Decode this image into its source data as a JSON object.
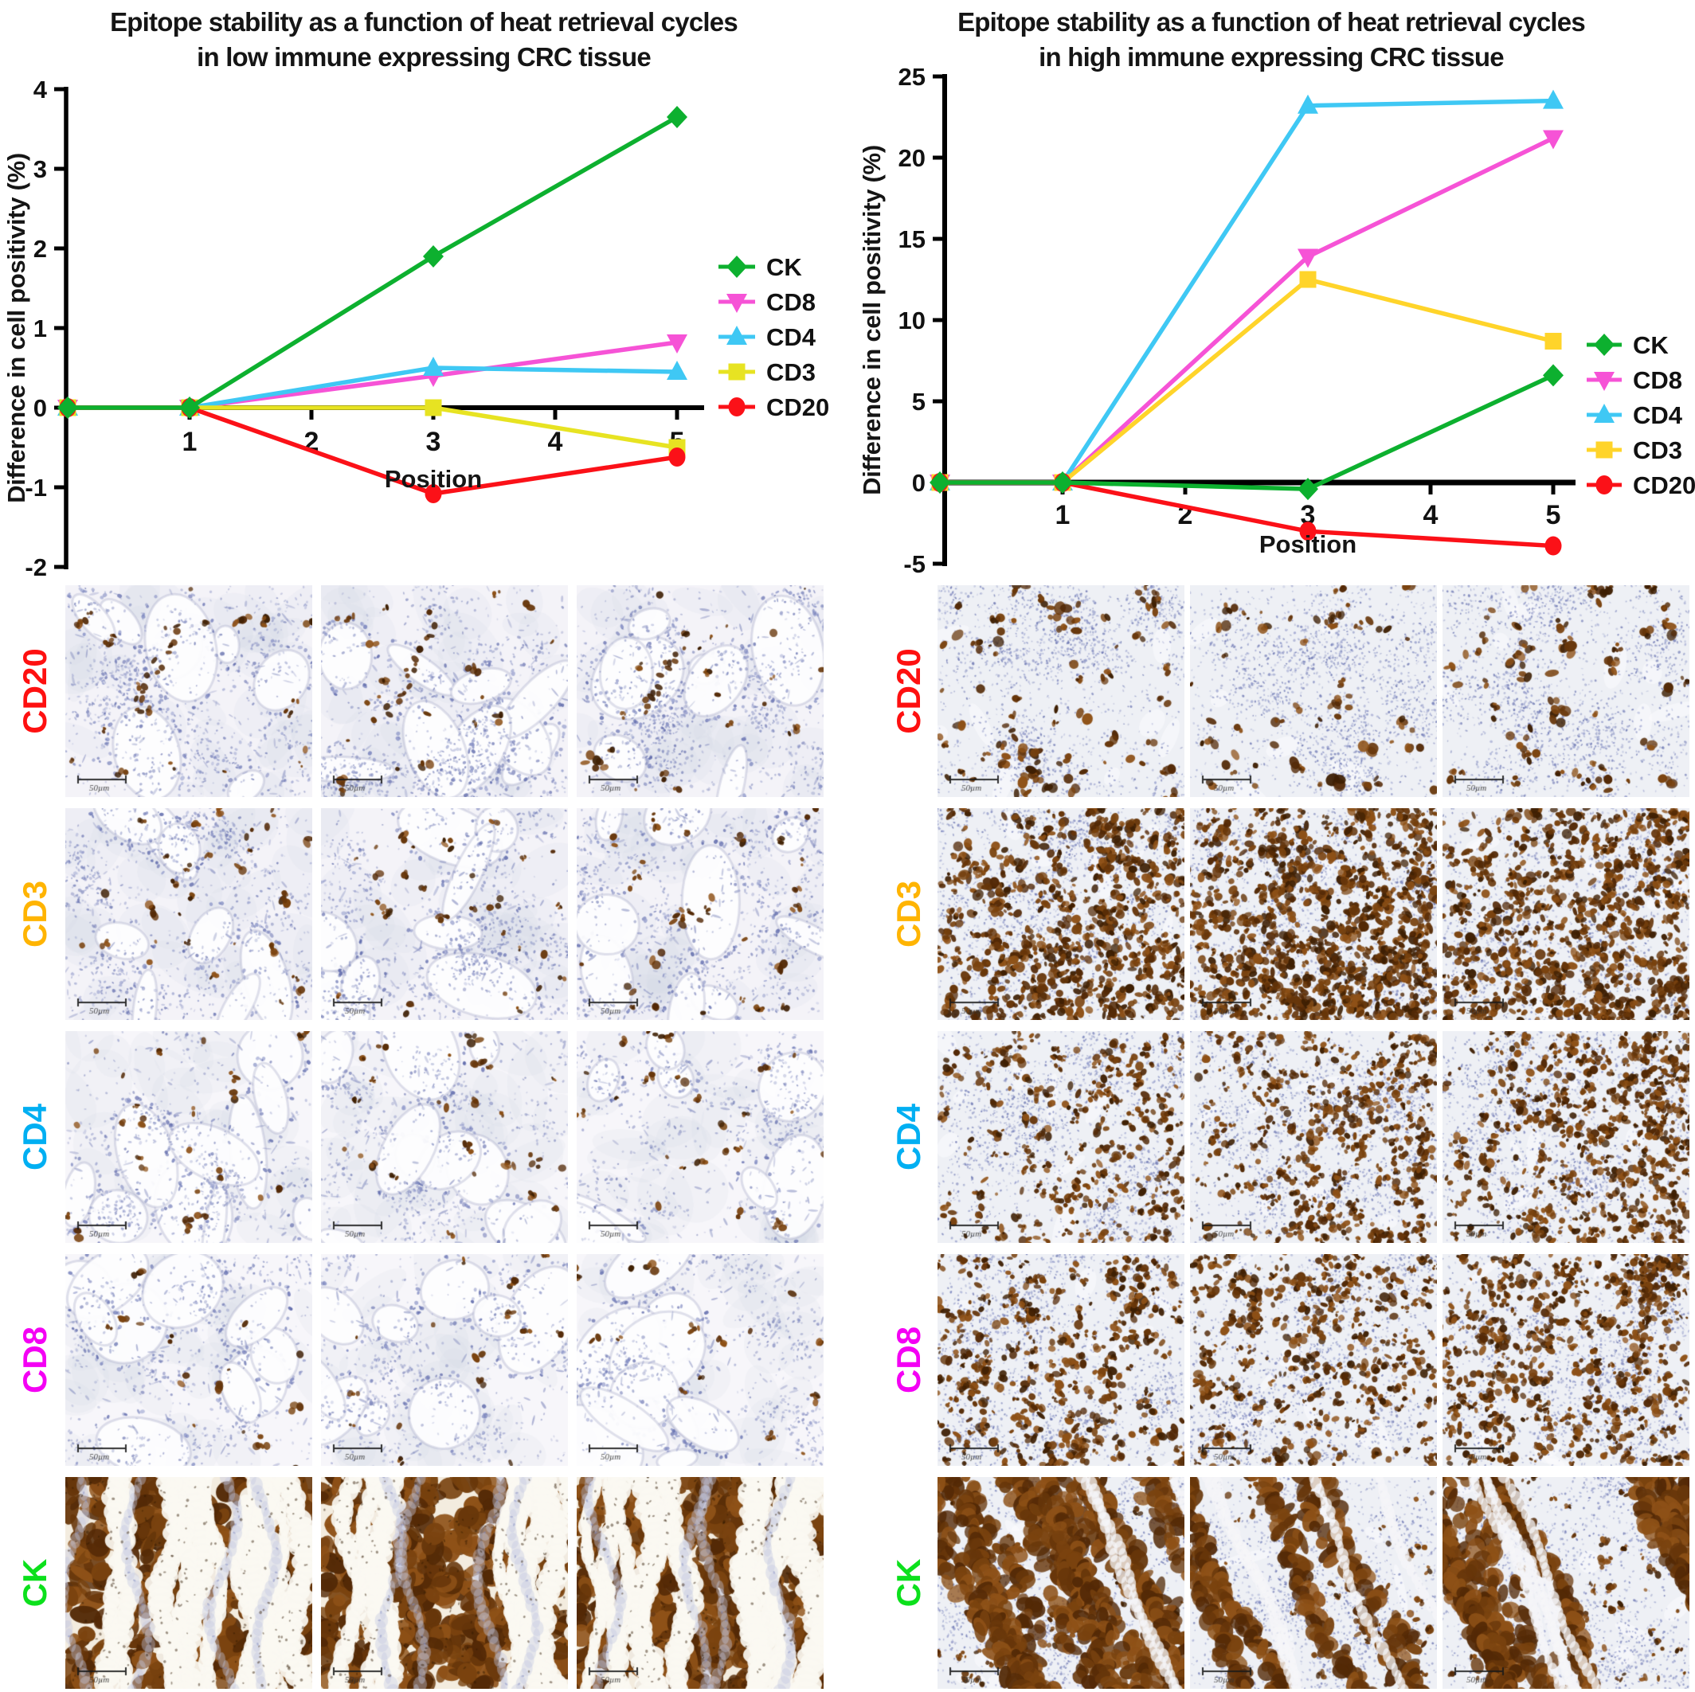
{
  "chart_data": [
    {
      "type": "line",
      "title_line1": "Epitope stability as a function of heat retrieval cycles",
      "title_line2": "in low immune expressing CRC tissue",
      "ylabel": "Difference in cell positivity (%)",
      "xlabel": "Position",
      "ylim": [
        -2,
        4
      ],
      "yticks": [
        4,
        3,
        2,
        1,
        0,
        -1,
        -2
      ],
      "xticks": [
        1,
        2,
        3,
        4,
        5
      ],
      "x": [
        0,
        1,
        3,
        5
      ],
      "legend_position": "right",
      "grid": false,
      "series": [
        {
          "name": "CK",
          "marker": "diamond",
          "color": "#0db02f",
          "values": [
            0,
            0,
            1.9,
            3.65
          ]
        },
        {
          "name": "CD8",
          "marker": "triangle-down",
          "color": "#f653d6",
          "values": [
            0,
            0,
            0.4,
            0.82
          ]
        },
        {
          "name": "CD4",
          "marker": "triangle-up",
          "color": "#3fc8f4",
          "values": [
            0,
            0,
            0.5,
            0.45
          ]
        },
        {
          "name": "CD3",
          "marker": "square",
          "color": "#e7e322",
          "values": [
            0,
            0,
            0.0,
            -0.5
          ]
        },
        {
          "name": "CD20",
          "marker": "circle",
          "color": "#fb1118",
          "values": [
            0,
            0,
            -1.08,
            -0.62
          ]
        }
      ]
    },
    {
      "type": "line",
      "title_line1": "Epitope stability as a function of heat retrieval cycles",
      "title_line2": "in high immune expressing CRC tissue",
      "ylabel": "Difference in cell positivity (%)",
      "xlabel": "Position",
      "ylim": [
        -5,
        25
      ],
      "yticks": [
        25,
        20,
        15,
        10,
        5,
        0,
        -5
      ],
      "xticks": [
        1,
        2,
        3,
        4,
        5
      ],
      "x": [
        0,
        1,
        3,
        5
      ],
      "legend_position": "right",
      "grid": false,
      "series": [
        {
          "name": "CK",
          "marker": "diamond",
          "color": "#0db02f",
          "values": [
            0,
            0,
            -0.4,
            6.6
          ]
        },
        {
          "name": "CD8",
          "marker": "triangle-down",
          "color": "#f653d6",
          "values": [
            0,
            0,
            13.9,
            21.2
          ]
        },
        {
          "name": "CD4",
          "marker": "triangle-up",
          "color": "#3fc8f4",
          "values": [
            0,
            0,
            23.2,
            23.5
          ]
        },
        {
          "name": "CD3",
          "marker": "square",
          "color": "#ffd42a",
          "values": [
            0,
            0,
            12.5,
            8.7
          ]
        },
        {
          "name": "CD20",
          "marker": "circle",
          "color": "#fb1118",
          "values": [
            0,
            0,
            -3.0,
            -3.9
          ]
        }
      ]
    }
  ],
  "panels": [
    {
      "name": "low immune expressing CRC tissue",
      "scale_bar": "50µm",
      "rows": [
        {
          "label": "CD20",
          "label_color": "#fe1010",
          "tissue": {
            "pattern": "glandular",
            "stain_level": "sparse",
            "brown_amount": 22,
            "diagonal_cluster": true
          }
        },
        {
          "label": "CD3",
          "label_color": "#ffb402",
          "tissue": {
            "pattern": "glandular",
            "stain_level": "sparse",
            "brown_amount": 30
          }
        },
        {
          "label": "CD4",
          "label_color": "#00aff2",
          "tissue": {
            "pattern": "glandular-pale",
            "stain_level": "sparse",
            "brown_amount": 26
          }
        },
        {
          "label": "CD8",
          "label_color": "#f400f4",
          "tissue": {
            "pattern": "glandular-pale",
            "stain_level": "very-sparse",
            "brown_amount": 16
          }
        },
        {
          "label": "CK",
          "label_color": "#0ce01c",
          "tissue": {
            "pattern": "glandular-solid-brown",
            "stain_level": "strong-diffuse"
          }
        }
      ]
    },
    {
      "name": "high immune expressing CRC tissue",
      "scale_bar": "50µm",
      "rows": [
        {
          "label": "CD20",
          "label_color": "#fe1010",
          "tissue": {
            "pattern": "lymphoid",
            "stain_level": "moderate-clusters",
            "brown_amount": 60,
            "clump_scale": 1.35,
            "bias": "scatter-topleft",
            "col_mult": [
              1.15,
              0.85,
              1.0
            ]
          }
        },
        {
          "label": "CD3",
          "label_color": "#ffb402",
          "tissue": {
            "pattern": "lymphoid",
            "stain_level": "very-dense",
            "brown_amount": 500,
            "clump_scale": 1.15,
            "bias": "diagonal",
            "col_mult": [
              0.9,
              1.25,
              1.05
            ]
          }
        },
        {
          "label": "CD4",
          "label_color": "#00aff2",
          "tissue": {
            "pattern": "lymphoid",
            "stain_level": "dense",
            "brown_amount": 340,
            "clump_scale": 1.0,
            "bias": "right",
            "col_mult": [
              0.7,
              1.05,
              1.3
            ]
          }
        },
        {
          "label": "CD8",
          "label_color": "#f400f4",
          "tissue": {
            "pattern": "lymphoid",
            "stain_level": "dense-speckled",
            "brown_amount": 330,
            "clump_scale": 1.05,
            "bias": "uniform",
            "col_mult": [
              0.95,
              1.0,
              1.3
            ]
          }
        },
        {
          "label": "CK",
          "label_color": "#0ce01c",
          "tissue": {
            "pattern": "lymphoid-bands",
            "stain_level": "strong-bands"
          }
        }
      ]
    }
  ]
}
